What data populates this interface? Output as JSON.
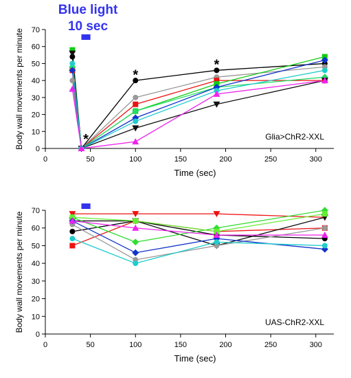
{
  "stimulus": {
    "title": "Blue light",
    "duration": "10 sec",
    "color": "#3333ee",
    "x_range": [
      40,
      50
    ]
  },
  "chart_data": [
    {
      "type": "line",
      "panel_label": "Glia>ChR2-XXL",
      "xlabel": "Time (sec)",
      "ylabel": "Body wall movements per minute",
      "xlim": [
        0,
        320
      ],
      "ylim": [
        0,
        70
      ],
      "xticks": [
        0,
        50,
        100,
        150,
        200,
        250,
        300
      ],
      "yticks": [
        0,
        10,
        20,
        30,
        40,
        50,
        60,
        70
      ],
      "x": [
        30,
        40,
        100,
        190,
        310
      ],
      "significance": [
        {
          "x": 45,
          "y": 6,
          "text": "*"
        },
        {
          "x": 100,
          "y": 44,
          "text": "*"
        },
        {
          "x": 190,
          "y": 50,
          "text": "*"
        }
      ],
      "series": [
        {
          "color": "#000000",
          "marker": "circle",
          "values": [
            54,
            0,
            40,
            46,
            50
          ]
        },
        {
          "color": "#999999",
          "marker": "circle",
          "values": [
            40,
            0,
            30,
            42,
            48
          ]
        },
        {
          "color": "#ee1111",
          "marker": "square",
          "values": [
            46,
            0,
            26,
            40,
            40
          ]
        },
        {
          "color": "#11cc11",
          "marker": "square",
          "values": [
            58,
            0,
            22,
            38,
            54
          ]
        },
        {
          "color": "#22dd66",
          "marker": "diamond",
          "values": [
            48,
            0,
            22,
            36,
            42
          ]
        },
        {
          "color": "#1133cc",
          "marker": "diamond",
          "values": [
            46,
            0,
            18,
            36,
            52
          ]
        },
        {
          "color": "#111111",
          "marker": "triangle-down",
          "values": [
            56,
            0,
            12,
            26,
            40
          ]
        },
        {
          "color": "#22cccc",
          "marker": "circle",
          "values": [
            50,
            0,
            16,
            34,
            46
          ]
        },
        {
          "color": "#ee22ee",
          "marker": "triangle-up",
          "values": [
            35,
            0,
            4,
            32,
            40
          ]
        }
      ]
    },
    {
      "type": "line",
      "panel_label": "UAS-ChR2-XXL",
      "xlabel": "Time (sec)",
      "ylabel": "Body wall movements per minute",
      "xlim": [
        0,
        320
      ],
      "ylim": [
        0,
        70
      ],
      "xticks": [
        0,
        50,
        100,
        150,
        200,
        250,
        300
      ],
      "yticks": [
        0,
        10,
        20,
        30,
        40,
        50,
        60,
        70
      ],
      "x": [
        30,
        100,
        190,
        310
      ],
      "series": [
        {
          "color": "#ee1111",
          "marker": "triangle-down",
          "values": [
            68,
            68,
            68,
            66
          ]
        },
        {
          "color": "#ee1111",
          "marker": "square",
          "values": [
            50,
            64,
            58,
            60
          ]
        },
        {
          "color": "#000000",
          "marker": "circle",
          "values": [
            58,
            64,
            56,
            54
          ]
        },
        {
          "color": "#111111",
          "marker": "triangle-down",
          "values": [
            64,
            64,
            50,
            66
          ]
        },
        {
          "color": "#999999",
          "marker": "circle",
          "values": [
            62,
            42,
            50,
            60
          ]
        },
        {
          "color": "#33dd33",
          "marker": "diamond",
          "values": [
            66,
            52,
            60,
            70
          ]
        },
        {
          "color": "#66ee33",
          "marker": "square",
          "values": [
            66,
            64,
            58,
            68
          ]
        },
        {
          "color": "#1133cc",
          "marker": "diamond",
          "values": [
            64,
            46,
            54,
            48
          ]
        },
        {
          "color": "#22cccc",
          "marker": "circle",
          "values": [
            54,
            40,
            52,
            50
          ]
        },
        {
          "color": "#ee22ee",
          "marker": "triangle-up",
          "values": [
            64,
            60,
            56,
            56
          ]
        }
      ]
    }
  ]
}
